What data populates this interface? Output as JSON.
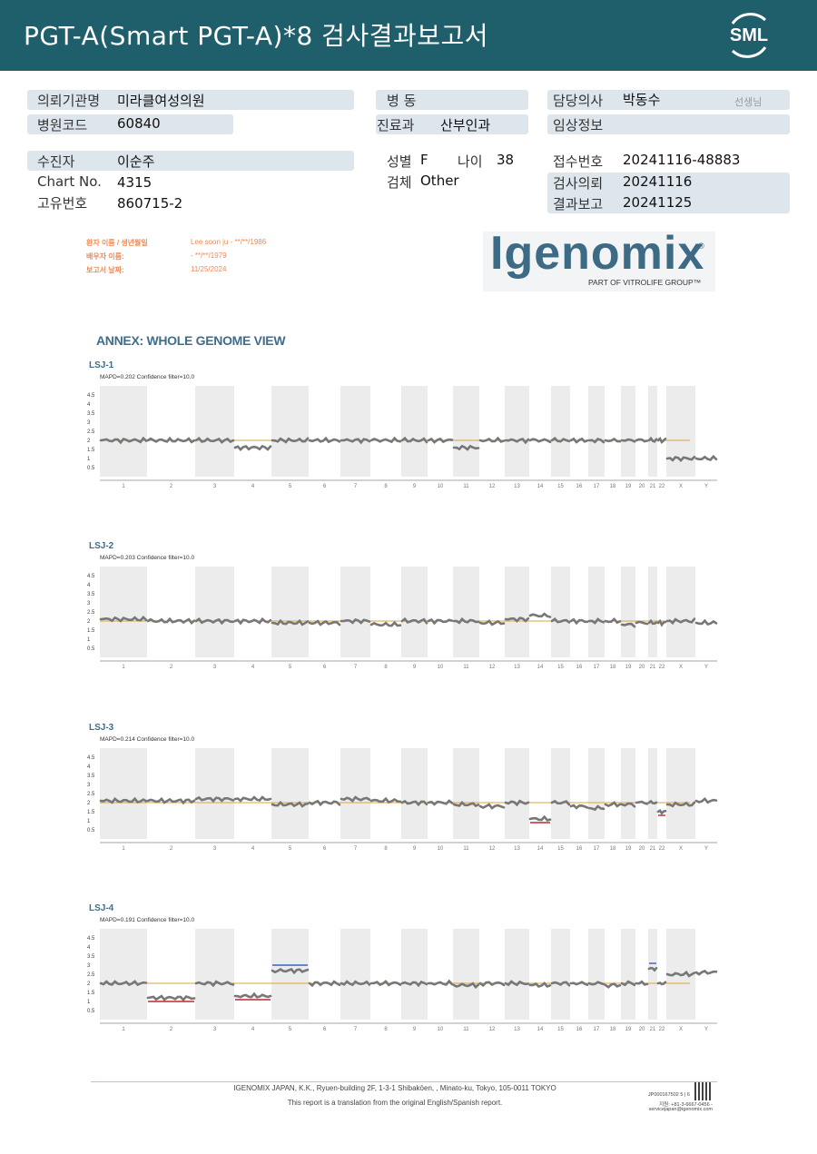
{
  "header": {
    "title": "PGT-A(Smart  PGT-A)*8 검사결과보고서",
    "logo": "SML"
  },
  "info": {
    "institution_label": "의뢰기관명",
    "institution": "미라클여성의원",
    "hospital_code_label": "병원코드",
    "hospital_code": "60840",
    "ward_label": "병  동",
    "ward": "",
    "dept_label": "진료과",
    "dept": "산부인과",
    "doctor_label": "담당의사",
    "doctor": "박동수",
    "doctor_suffix": "선생님",
    "clinical_label": "임상정보",
    "clinical": "",
    "patient_label": "수진자",
    "patient": "이순주",
    "chart_label": "Chart No.",
    "chart": "4315",
    "id_label": "고유번호",
    "id": "860715-2",
    "sex_label": "성별",
    "sex": "F",
    "age_label": "나이",
    "age": "38",
    "specimen_label": "검체",
    "specimen": "Other",
    "receipt_label": "접수번호",
    "receipt": "20241116-48883",
    "request_label": "검사의뢰",
    "request": "20241116",
    "report_label": "결과보고",
    "report": "20241125"
  },
  "embedded": {
    "patient_label": "환자 이름 / 생년월일",
    "patient_val": "Lee soon ju - **/**/1986",
    "spouse_label": "배우자 이름:",
    "spouse_val": "- **/**/1979",
    "date_label": "보고서 날짜:",
    "date_val": "11/25/2024"
  },
  "brand": {
    "name": "Igenomix",
    "mark": "®",
    "sub": "PART OF VITROLIFE GROUP™"
  },
  "annex_title": "ANNEX: WHOLE GENOME VIEW",
  "chart_data": [
    {
      "type": "scatter",
      "title": "LSJ-1",
      "subtitle": "MAPD=0.202 Confidence filter=10.0",
      "yticks": [
        "4.5",
        "4",
        "3.5",
        "3",
        "2.5",
        "2",
        "1.5",
        "1",
        "0.5"
      ],
      "categories": [
        "1",
        "2",
        "3",
        "4",
        "5",
        "6",
        "7",
        "8",
        "9",
        "10",
        "11",
        "12",
        "13",
        "14",
        "15",
        "16",
        "17",
        "18",
        "19",
        "20",
        "21",
        "22",
        "X",
        "Y"
      ],
      "values": [
        2,
        2,
        2,
        1.6,
        2,
        2,
        2,
        2,
        2,
        2,
        1.6,
        2,
        2,
        2,
        2,
        2,
        2,
        2,
        2,
        2,
        2,
        2,
        1,
        1
      ],
      "reference": 2
    },
    {
      "type": "scatter",
      "title": "LSJ-2",
      "subtitle": "MAPD=0.203 Confidence filter=10.0",
      "yticks": [
        "4.5",
        "4",
        "3.5",
        "3",
        "2.5",
        "2",
        "1.5",
        "1",
        "0.5"
      ],
      "categories": [
        "1",
        "2",
        "3",
        "4",
        "5",
        "6",
        "7",
        "8",
        "9",
        "10",
        "11",
        "12",
        "13",
        "14",
        "15",
        "16",
        "17",
        "18",
        "19",
        "20",
        "21",
        "22",
        "X",
        "Y"
      ],
      "values": [
        2.1,
        2,
        2,
        2,
        1.9,
        1.9,
        2,
        1.8,
        2,
        2,
        2,
        1.9,
        2.1,
        2.3,
        2,
        2,
        2,
        2,
        1.8,
        1.9,
        1.9,
        1.9,
        2,
        1.9
      ],
      "reference": 2
    },
    {
      "type": "scatter",
      "title": "LSJ-3",
      "subtitle": "MAPD=0.214 Confidence filter=10.0",
      "yticks": [
        "4.5",
        "4",
        "3.5",
        "3",
        "2.5",
        "2",
        "1.5",
        "1",
        "0.5"
      ],
      "categories": [
        "1",
        "2",
        "3",
        "4",
        "5",
        "6",
        "7",
        "8",
        "9",
        "10",
        "11",
        "12",
        "13",
        "14",
        "15",
        "16",
        "17",
        "18",
        "19",
        "20",
        "21",
        "22",
        "X",
        "Y"
      ],
      "values": [
        2.1,
        2.1,
        2.2,
        2.2,
        1.9,
        2,
        2.2,
        2.1,
        2,
        2,
        1.9,
        1.8,
        2,
        1.1,
        2,
        1.8,
        1.7,
        1.9,
        1.9,
        2,
        2,
        1.5,
        1.9,
        2.1
      ],
      "reference": 2
    },
    {
      "type": "scatter",
      "title": "LSJ-4",
      "subtitle": "MAPD=0.191 Confidence filter=10.0",
      "yticks": [
        "4.5",
        "4",
        "3.5",
        "3",
        "2.5",
        "2",
        "1.5",
        "1",
        "0.5"
      ],
      "categories": [
        "1",
        "2",
        "3",
        "4",
        "5",
        "6",
        "7",
        "8",
        "9",
        "10",
        "11",
        "12",
        "13",
        "14",
        "15",
        "16",
        "17",
        "18",
        "19",
        "20",
        "21",
        "22",
        "X",
        "Y"
      ],
      "values": [
        2,
        1.2,
        2,
        1.3,
        2.7,
        2,
        2,
        2,
        2,
        2,
        1.9,
        2,
        2,
        1.9,
        2,
        2,
        2,
        1.9,
        2,
        2,
        2.8,
        2,
        2.5,
        2.6
      ],
      "reference": 2
    }
  ],
  "footer": {
    "line1": "IGENOMIX JAPAN, K.K., Ryuen-building 2F, 1-3-1 Shibakōen, , Minato-ku, Tokyo, 105-0011 TOKYO",
    "line2": "This report is a translation from the original English/Spanish report.",
    "code": "JP000167502    5 | 6",
    "phone": "지원: +81-3-6667-0456 -",
    "email": "servicejapan@igenomix.com"
  }
}
